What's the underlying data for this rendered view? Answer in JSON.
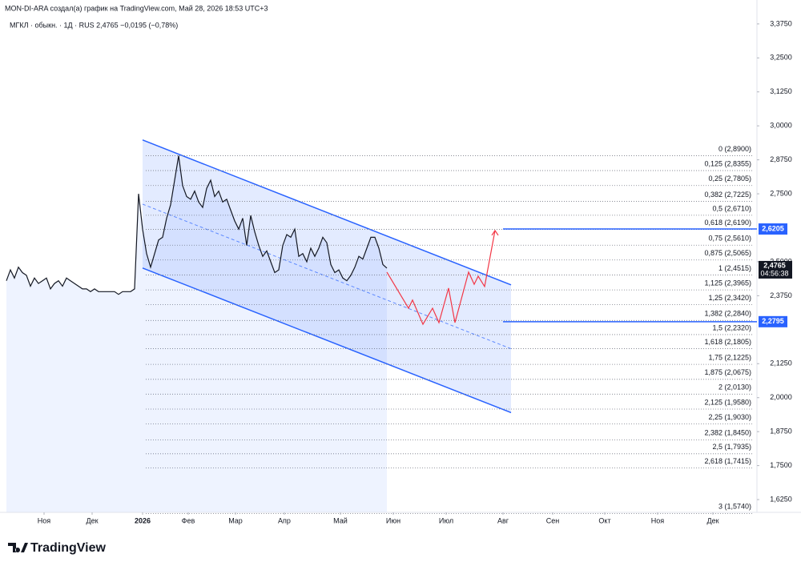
{
  "chart_data": {
    "type": "line",
    "author_line": "MON-DI-ARA создал(а) график на TradingView.com, Май 28, 2026 18:53 UTC+3",
    "symbol_line": "МГКЛ · обыкн. · 1Д · RUS  2,4765  −0,0195 (−0,78%)",
    "brand": "TradingView",
    "xlim": [
      0,
      187.4
    ],
    "ylim": [
      1.578,
      3.463
    ],
    "xticks": [
      {
        "value": 9.4,
        "label": "Ноя"
      },
      {
        "value": 21.4,
        "label": "Дек"
      },
      {
        "value": 34,
        "label": "2026"
      },
      {
        "value": 45.4,
        "label": "Фев"
      },
      {
        "value": 57.2,
        "label": "Мар"
      },
      {
        "value": 69.4,
        "label": "Апр"
      },
      {
        "value": 83.4,
        "label": "Май"
      },
      {
        "value": 96.6,
        "label": "Июн"
      },
      {
        "value": 109.8,
        "label": "Июл"
      },
      {
        "value": 124,
        "label": "Авг"
      },
      {
        "value": 136.4,
        "label": "Сен"
      },
      {
        "value": 149.4,
        "label": "Окт"
      },
      {
        "value": 162.6,
        "label": "Ноя"
      },
      {
        "value": 176.4,
        "label": "Дек"
      }
    ],
    "yticks": [
      {
        "value": 3.375,
        "label": "3,3750"
      },
      {
        "value": 3.25,
        "label": "3,2500"
      },
      {
        "value": 3.125,
        "label": "3,1250"
      },
      {
        "value": 3.0,
        "label": "3,0000"
      },
      {
        "value": 2.875,
        "label": "2,8750"
      },
      {
        "value": 2.75,
        "label": "2,7500"
      },
      {
        "value": 2.5,
        "label": "2,5000"
      },
      {
        "value": 2.375,
        "label": "2,3750"
      },
      {
        "value": 2.125,
        "label": "2,1250"
      },
      {
        "value": 2.0,
        "label": "2,0000"
      },
      {
        "value": 1.875,
        "label": "1,8750"
      },
      {
        "value": 1.75,
        "label": "1,7500"
      },
      {
        "value": 1.625,
        "label": "1,6250"
      }
    ],
    "series": [
      {
        "name": "МГКЛ",
        "color": "#131722",
        "values": [
          2.43,
          2.47,
          2.44,
          2.48,
          2.46,
          2.45,
          2.41,
          2.44,
          2.42,
          2.43,
          2.44,
          2.4,
          2.42,
          2.43,
          2.41,
          2.44,
          2.43,
          2.42,
          2.41,
          2.4,
          2.4,
          2.39,
          2.4,
          2.39,
          2.39,
          2.39,
          2.39,
          2.39,
          2.38,
          2.39,
          2.39,
          2.39,
          2.4,
          2.75,
          2.62,
          2.53,
          2.48,
          2.53,
          2.58,
          2.59,
          2.66,
          2.71,
          2.8,
          2.89,
          2.78,
          2.74,
          2.73,
          2.76,
          2.72,
          2.7,
          2.77,
          2.8,
          2.74,
          2.76,
          2.72,
          2.73,
          2.69,
          2.65,
          2.62,
          2.66,
          2.56,
          2.67,
          2.61,
          2.56,
          2.52,
          2.54,
          2.5,
          2.46,
          2.47,
          2.56,
          2.6,
          2.59,
          2.62,
          2.52,
          2.53,
          2.5,
          2.55,
          2.52,
          2.55,
          2.59,
          2.57,
          2.49,
          2.46,
          2.47,
          2.44,
          2.43,
          2.45,
          2.48,
          2.52,
          2.51,
          2.55,
          2.59,
          2.59,
          2.55,
          2.49,
          2.4765
        ]
      }
    ],
    "projection": {
      "color": "#f23645",
      "x": [
        95,
        100.4,
        101.4,
        104,
        106.4,
        108,
        110.4,
        112,
        115.4,
        116.8,
        117.8,
        119.4,
        122
      ],
      "values": [
        2.462,
        2.329,
        2.359,
        2.27,
        2.329,
        2.276,
        2.403,
        2.276,
        2.462,
        2.417,
        2.447,
        2.409,
        2.615
      ]
    },
    "channel": {
      "color": "#2962ff",
      "x": [
        34,
        126
      ],
      "upper": [
        2.948,
        2.415
      ],
      "middle": [
        2.712,
        2.18
      ],
      "lower": [
        2.477,
        1.945
      ]
    },
    "levels": [
      {
        "value": 2.6205,
        "label": "2,6205"
      },
      {
        "value": 2.2795,
        "label": "2,2795"
      }
    ],
    "last_price": {
      "value": 2.4765,
      "label": "2,4765",
      "timer": "04:56:38"
    },
    "fib_levels": [
      {
        "value": 2.89,
        "label": "0 (2,8900)"
      },
      {
        "value": 2.8355,
        "label": "0,125 (2,8355)"
      },
      {
        "value": 2.7805,
        "label": "0,25 (2,7805)"
      },
      {
        "value": 2.7225,
        "label": "0,382 (2,7225)"
      },
      {
        "value": 2.671,
        "label": "0,5 (2,6710)"
      },
      {
        "value": 2.619,
        "label": "0,618 (2,6190)"
      },
      {
        "value": 2.561,
        "label": "0,75 (2,5610)"
      },
      {
        "value": 2.5065,
        "label": "0,875 (2,5065)"
      },
      {
        "value": 2.4515,
        "label": "1 (2,4515)"
      },
      {
        "value": 2.3965,
        "label": "1,125 (2,3965)"
      },
      {
        "value": 2.342,
        "label": "1,25 (2,3420)"
      },
      {
        "value": 2.284,
        "label": "1,382 (2,2840)"
      },
      {
        "value": 2.232,
        "label": "1,5 (2,2320)"
      },
      {
        "value": 2.1805,
        "label": "1,618 (2,1805)"
      },
      {
        "value": 2.1225,
        "label": "1,75 (2,1225)"
      },
      {
        "value": 2.0675,
        "label": "1,875 (2,0675)"
      },
      {
        "value": 2.013,
        "label": "2 (2,0130)"
      },
      {
        "value": 1.958,
        "label": "2,125 (1,9580)"
      },
      {
        "value": 1.903,
        "label": "2,25 (1,9030)"
      },
      {
        "value": 1.845,
        "label": "2,382 (1,8450)"
      },
      {
        "value": 1.7935,
        "label": "2,5 (1,7935)"
      },
      {
        "value": 1.7415,
        "label": "2,618 (1,7415)"
      },
      {
        "value": 1.574,
        "label": "3 (1,5740)"
      }
    ]
  }
}
